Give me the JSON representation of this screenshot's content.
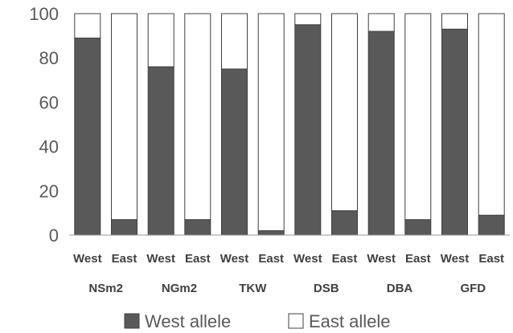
{
  "chart_data": {
    "type": "bar",
    "stacked": true,
    "groups": [
      "NSm2",
      "NGm2",
      "TKW",
      "DSB",
      "DBA",
      "GFD"
    ],
    "categories": [
      "West",
      "East",
      "West",
      "East",
      "West",
      "East",
      "West",
      "East",
      "West",
      "East",
      "West",
      "East"
    ],
    "series": [
      {
        "name": "West allele",
        "color": "#595959",
        "values": [
          89,
          7,
          76,
          7,
          75,
          2,
          95,
          11,
          92,
          7,
          93,
          9
        ]
      },
      {
        "name": "East allele",
        "color": "#ffffff",
        "values": [
          11,
          93,
          24,
          93,
          25,
          98,
          5,
          89,
          8,
          93,
          7,
          91
        ]
      }
    ],
    "ylim": [
      0,
      100
    ],
    "yticks": [
      "0",
      "20",
      "40",
      "60",
      "80",
      "100"
    ],
    "grid": false,
    "legend": "bottom"
  }
}
